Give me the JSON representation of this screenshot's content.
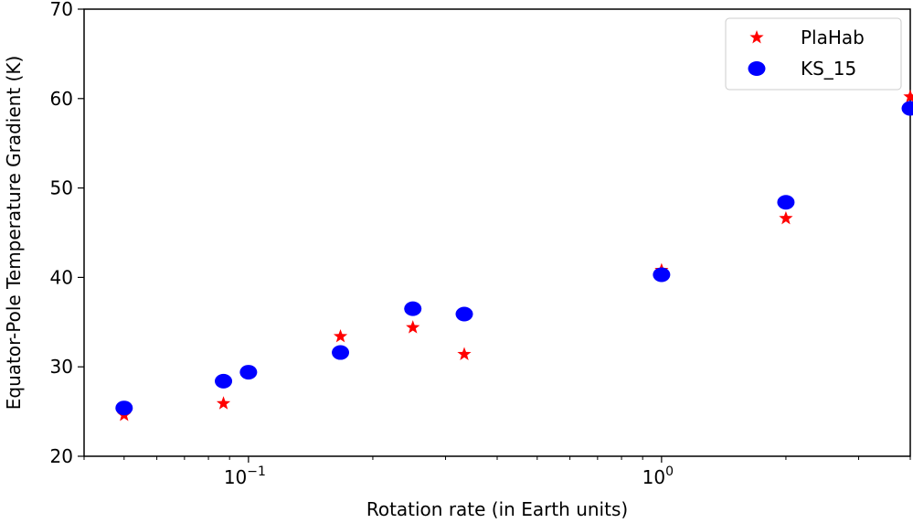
{
  "chart_data": {
    "type": "scatter",
    "title": "",
    "xlabel": "Rotation rate (in Earth units)",
    "ylabel": "Equator-Pole Temperature Gradient (K)",
    "xscale": "log",
    "xlim": [
      0.04,
      4
    ],
    "ylim": [
      20,
      70
    ],
    "xticks": [
      {
        "value": 0.1,
        "base": "10",
        "exp": "−1"
      },
      {
        "value": 1,
        "base": "10",
        "exp": "0"
      }
    ],
    "yticks": [
      20,
      30,
      40,
      50,
      60,
      70
    ],
    "grid": false,
    "legend": "top-right",
    "series": [
      {
        "name": "PlaHab",
        "marker": "star",
        "color": "#ff0000",
        "points": [
          {
            "x": 0.05,
            "y": 24.6
          },
          {
            "x": 0.087,
            "y": 25.9
          },
          {
            "x": 0.167,
            "y": 33.4
          },
          {
            "x": 0.25,
            "y": 34.4
          },
          {
            "x": 0.333,
            "y": 31.4
          },
          {
            "x": 1.0,
            "y": 40.8
          },
          {
            "x": 2.0,
            "y": 46.6
          },
          {
            "x": 4.0,
            "y": 60.2
          }
        ]
      },
      {
        "name": "KS_15",
        "marker": "circle",
        "color": "#0000ff",
        "points": [
          {
            "x": 0.05,
            "y": 25.4
          },
          {
            "x": 0.087,
            "y": 28.4
          },
          {
            "x": 0.1,
            "y": 29.4
          },
          {
            "x": 0.167,
            "y": 31.6
          },
          {
            "x": 0.25,
            "y": 36.5
          },
          {
            "x": 0.333,
            "y": 35.9
          },
          {
            "x": 1.0,
            "y": 40.3
          },
          {
            "x": 2.0,
            "y": 48.4
          },
          {
            "x": 4.0,
            "y": 58.9
          }
        ]
      }
    ]
  }
}
